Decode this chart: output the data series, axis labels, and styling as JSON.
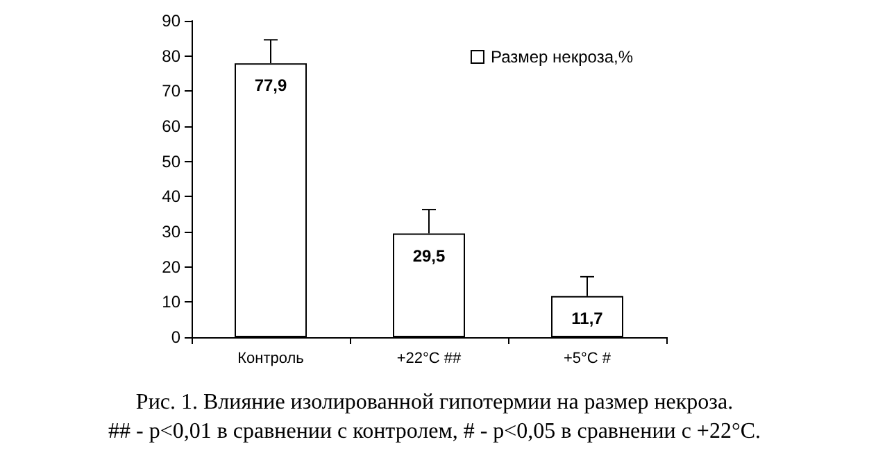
{
  "chart_data": {
    "type": "bar",
    "title": "Рис. 1. Влияние изолированной гипотермии на размер некроза.",
    "annotations": [
      "## - p<0,01 в сравнении с контролем, # - p<0,05 в сравнении с +22°С."
    ],
    "categories": [
      "Контроль",
      "+22°С ##",
      "+5°С #"
    ],
    "series": [
      {
        "name": "Размер некроза,%",
        "color": "#ffffff",
        "values": [
          77.9,
          29.5,
          11.7
        ],
        "errors": [
          [
            77.9,
            84.6
          ],
          [
            29.5,
            36.3
          ],
          [
            11.7,
            17.2
          ]
        ],
        "value_labels": [
          "77,9",
          "29,5",
          "11,7"
        ]
      }
    ],
    "ylim": [
      0,
      90
    ],
    "yticks": [
      0,
      10,
      20,
      30,
      40,
      50,
      60,
      70,
      80,
      90
    ],
    "grid": false,
    "legend": "top right"
  }
}
